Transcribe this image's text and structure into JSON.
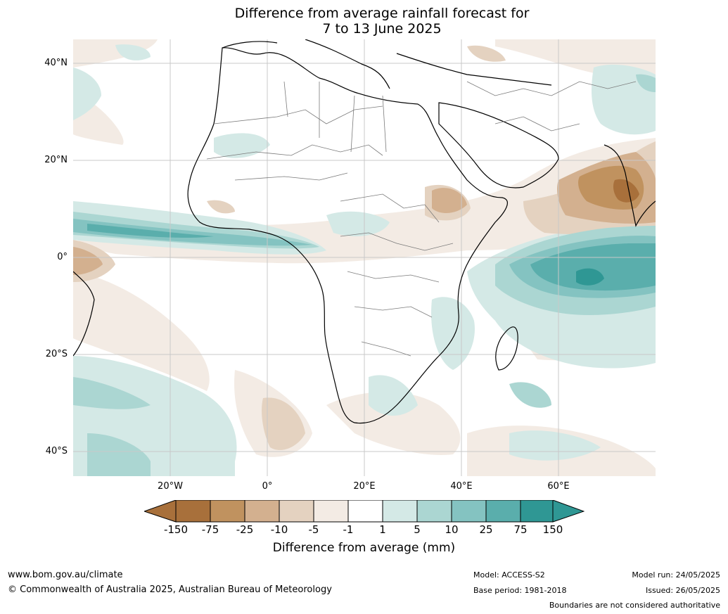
{
  "title": {
    "line1": "Difference from average rainfall forecast for",
    "line2": "7 to 13 June 2025"
  },
  "map": {
    "lat_labels": [
      "40°N",
      "20°N",
      "0°",
      "20°S",
      "40°S"
    ],
    "lon_labels": [
      "20°W",
      "0°",
      "20°E",
      "40°E",
      "60°E"
    ],
    "region": "Africa and surrounding oceans"
  },
  "legend": {
    "tick_labels": [
      "-150",
      "-75",
      "-25",
      "-10",
      "-5",
      "-1",
      "1",
      "5",
      "10",
      "25",
      "75",
      "150"
    ],
    "colors": [
      "#a8703b",
      "#c0925f",
      "#d3b08f",
      "#e4d2c0",
      "#f3ebe4",
      "#ffffff",
      "#d4e9e6",
      "#abd6d2",
      "#84c3c1",
      "#5aaeac",
      "#2f9794"
    ],
    "extend_low_color": "#a8703b",
    "extend_high_color": "#2f9794",
    "title": "Difference from average (mm)"
  },
  "footer": {
    "website": "www.bom.gov.au/climate",
    "copyright": "© Commonwealth of Australia 2025, Australian Bureau of Meteorology",
    "model": "Model: ACCESS-S2",
    "base_period": "Base period: 1981-2018",
    "model_run": "Model run: 24/05/2025",
    "issued": "Issued: 26/05/2025",
    "disclaimer": "Boundaries are not considered authoritative"
  }
}
